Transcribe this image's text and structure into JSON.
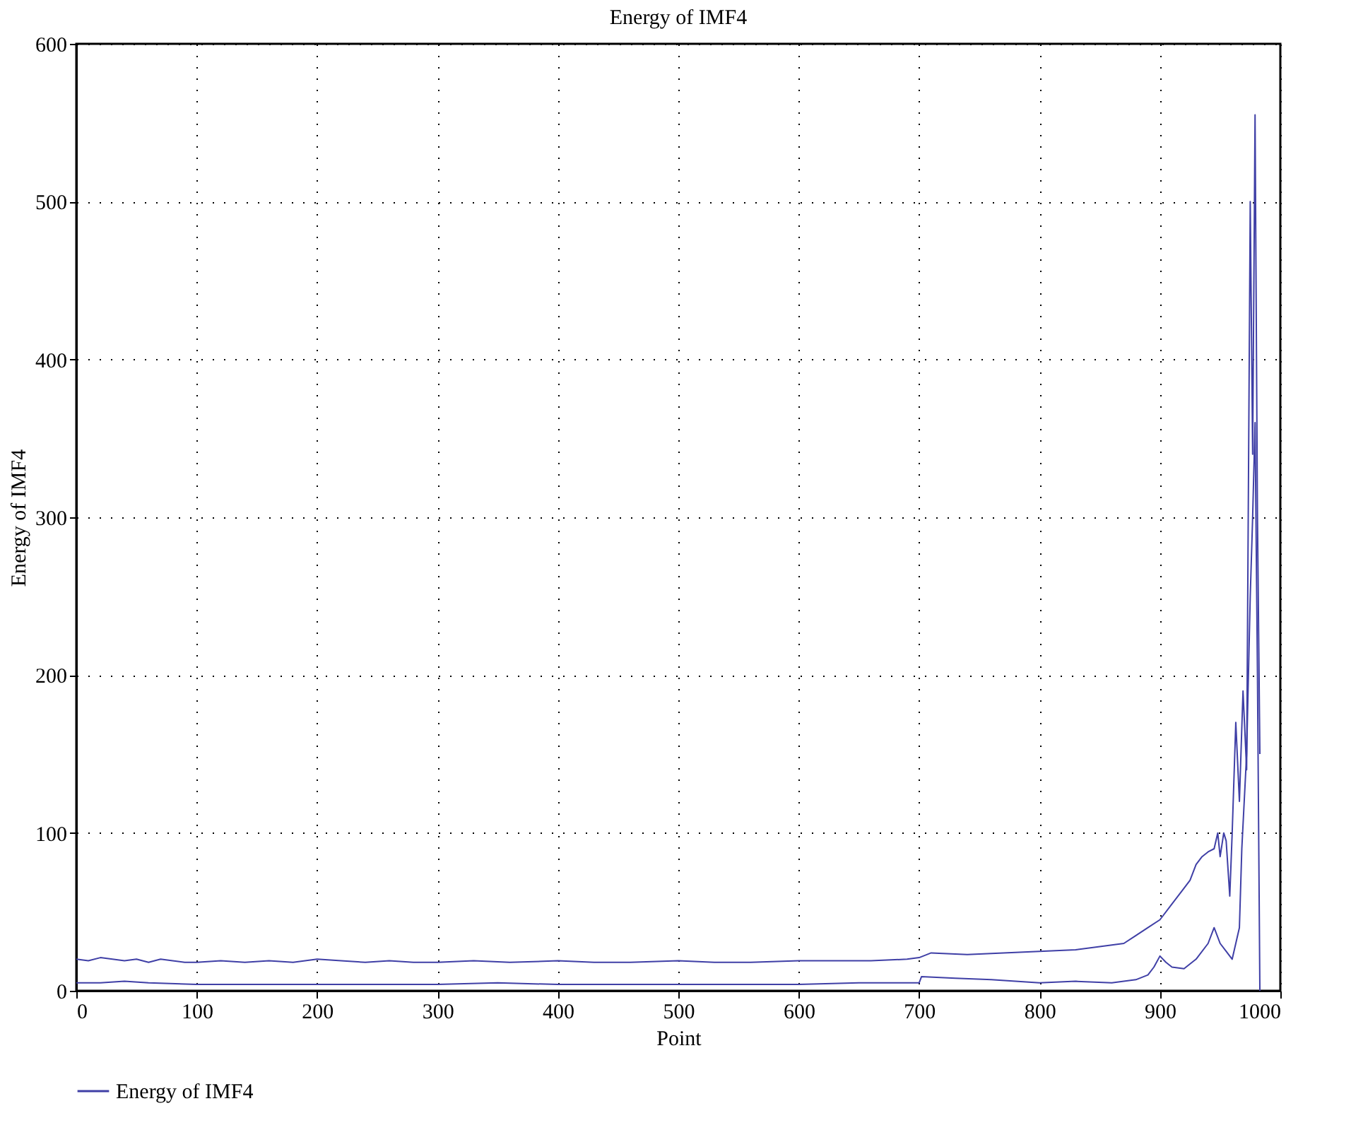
{
  "chart_data": {
    "type": "line",
    "title": "Energy of IMF4",
    "xlabel": "Point",
    "ylabel": "Energy of IMF4",
    "xlim": [
      0,
      1000
    ],
    "xticks": [
      0,
      100,
      200,
      300,
      400,
      500,
      600,
      700,
      800,
      900,
      1000
    ],
    "ylim": [
      0,
      600
    ],
    "yticks": [
      0,
      100,
      200,
      300,
      400,
      500,
      600
    ],
    "grid": true,
    "legend": "bottom left",
    "line_style": "solid",
    "series": [
      {
        "name": "Energy of IMF4",
        "color": "#3f3fa6",
        "x": [
          0,
          10,
          20,
          30,
          40,
          50,
          60,
          70,
          80,
          90,
          100,
          120,
          140,
          160,
          180,
          200,
          220,
          240,
          260,
          280,
          300,
          330,
          360,
          400,
          430,
          460,
          500,
          530,
          560,
          600,
          630,
          660,
          690,
          700,
          710,
          740,
          770,
          800,
          830,
          850,
          870,
          880,
          890,
          900,
          910,
          920,
          925,
          930,
          935,
          940,
          945,
          948,
          950,
          953,
          955,
          958,
          960,
          963,
          966,
          969,
          972,
          975,
          977,
          979,
          981,
          983
        ],
        "values": [
          20,
          19,
          21,
          20,
          19,
          20,
          18,
          20,
          19,
          18,
          18,
          19,
          18,
          19,
          18,
          20,
          19,
          18,
          19,
          18,
          18,
          19,
          18,
          19,
          18,
          18,
          19,
          18,
          18,
          19,
          19,
          19,
          20,
          21,
          24,
          23,
          24,
          25,
          26,
          28,
          30,
          35,
          40,
          45,
          55,
          65,
          70,
          80,
          85,
          88,
          90,
          100,
          85,
          100,
          95,
          60,
          100,
          170,
          120,
          190,
          140,
          500,
          340,
          555,
          300,
          150
        ]
      },
      {
        "color": "#3f3fa6",
        "x": [
          0,
          20,
          40,
          60,
          100,
          150,
          200,
          250,
          300,
          350,
          400,
          450,
          500,
          550,
          600,
          650,
          700,
          702,
          730,
          760,
          800,
          830,
          860,
          880,
          890,
          895,
          900,
          905,
          910,
          920,
          930,
          940,
          945,
          950,
          955,
          960,
          963,
          966,
          968,
          972,
          975,
          977,
          979,
          981,
          982,
          983
        ],
        "values": [
          5,
          5,
          6,
          5,
          4,
          4,
          4,
          4,
          4,
          5,
          4,
          4,
          4,
          4,
          4,
          5,
          5,
          9,
          8,
          7,
          5,
          6,
          5,
          7,
          10,
          15,
          22,
          18,
          15,
          14,
          20,
          30,
          40,
          30,
          25,
          20,
          30,
          40,
          90,
          150,
          250,
          300,
          360,
          200,
          100,
          0
        ]
      }
    ]
  }
}
